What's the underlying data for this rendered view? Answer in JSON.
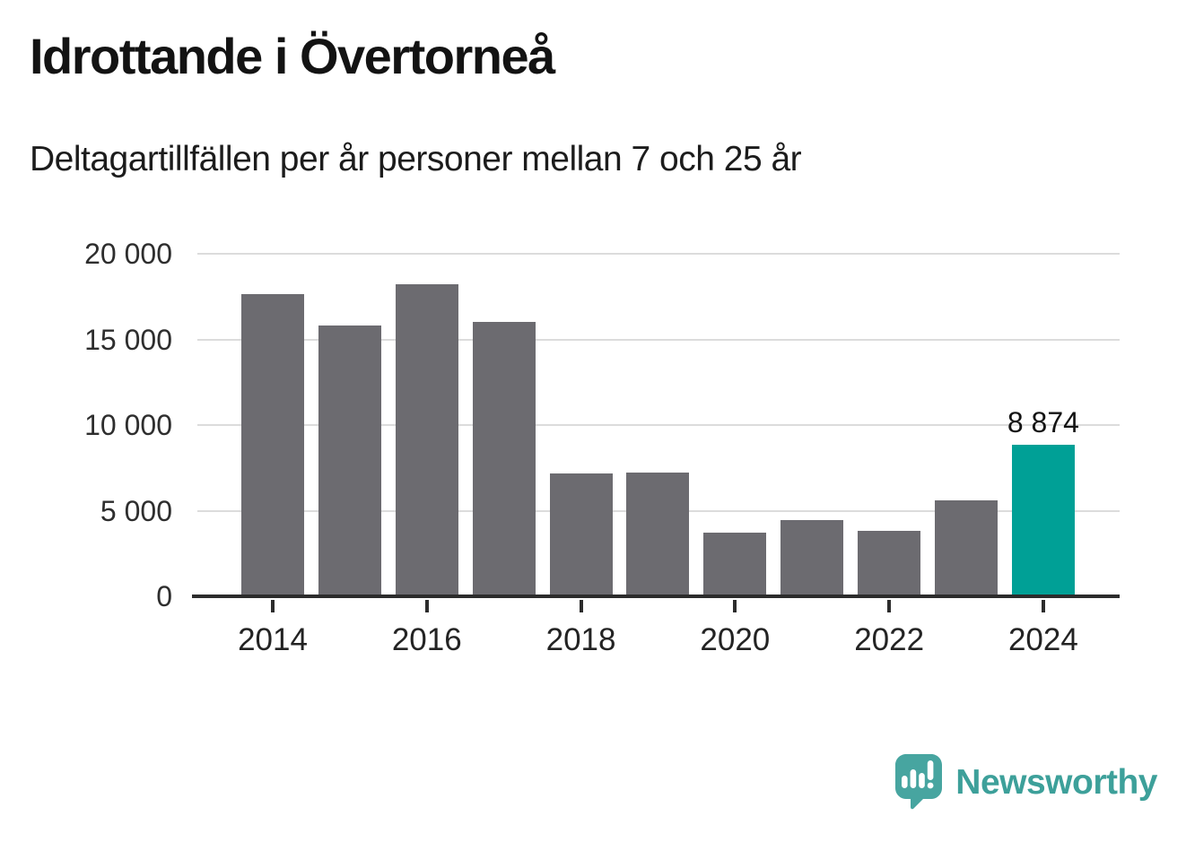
{
  "header": {
    "title": "Idrottande i Övertorneå",
    "subtitle": "Deltagartillfällen per år personer mellan 7 och 25 år"
  },
  "chart_data": {
    "type": "bar",
    "title": "Idrottande i Övertorneå",
    "subtitle": "Deltagartillfällen per år personer mellan 7 och 25 år",
    "categories": [
      "2014",
      "2015",
      "2016",
      "2017",
      "2018",
      "2019",
      "2020",
      "2021",
      "2022",
      "2023",
      "2024"
    ],
    "values": [
      17650,
      15800,
      18200,
      16000,
      7150,
      7200,
      3700,
      4450,
      3800,
      5600,
      8874
    ],
    "highlight_index": 10,
    "highlight_label": "8 874",
    "xlabel": "",
    "ylabel": "",
    "ylim": [
      0,
      20000
    ],
    "yticks": [
      0,
      5000,
      10000,
      15000,
      20000
    ],
    "ytick_labels": [
      "0",
      "5 000",
      "10 000",
      "15 000",
      "20 000"
    ],
    "xtick_labels": [
      "2014",
      "2016",
      "2018",
      "2020",
      "2022",
      "2024"
    ],
    "grid": true,
    "legend": false,
    "colors": {
      "bar": "#6c6b70",
      "highlight": "#00a096",
      "grid": "#dcdcdc",
      "axis": "#2c2c2c"
    }
  },
  "footer": {
    "brand": "Newsworthy",
    "brand_color": "#3da09a",
    "brand_icon_color": "#47a5a0",
    "logo_icon": "newsworthy-speech-bubble-chart-icon"
  }
}
